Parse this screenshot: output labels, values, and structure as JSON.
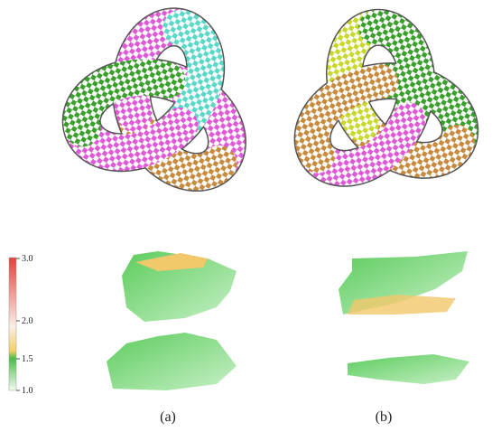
{
  "colorbar": {
    "tick_labels": [
      "3.0",
      "2.0",
      "1.5",
      "1.0"
    ]
  },
  "captions": [
    "(a)",
    "(b)"
  ]
}
